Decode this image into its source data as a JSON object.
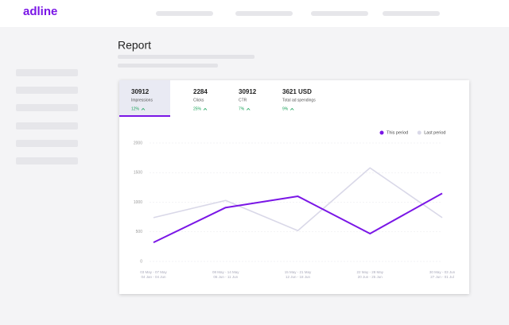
{
  "header": {
    "logo": "adline"
  },
  "page": {
    "title": "Report"
  },
  "tabs": [
    {
      "value": 30912,
      "label": "Impressions",
      "change": "12%"
    },
    {
      "value": 2284,
      "label": "Clicks",
      "change": "25%"
    },
    {
      "value": 30912,
      "label": "CTR",
      "change": "7%"
    },
    {
      "value": "3621 USD",
      "label": "Total ad spendings",
      "change": "9%"
    }
  ],
  "chart_data": {
    "type": "line",
    "categories": [
      [
        "03 May - 07 May",
        "04 Jan - 04 Jun"
      ],
      [
        "08 May - 14 May",
        "06 Jun - 11 Jun"
      ],
      [
        "15 May - 21 May",
        "12 Jun - 18 Jun"
      ],
      [
        "22 May - 28 May",
        "20 Jun - 25 Jun"
      ],
      [
        "30 May - 03 Jun",
        "27 Jun - 01 Jul"
      ]
    ],
    "series": [
      {
        "name": "This period",
        "color": "#7a16e6",
        "values": [
          320,
          910,
          1100,
          470,
          1150
        ]
      },
      {
        "name": "Last period",
        "color": "#d9d8e8",
        "values": [
          740,
          1030,
          520,
          1580,
          740
        ]
      }
    ],
    "ylim": [
      0,
      2000
    ],
    "yticks": [
      0,
      500,
      1000,
      1500,
      2000
    ],
    "grid": true,
    "legend": "top-right"
  }
}
